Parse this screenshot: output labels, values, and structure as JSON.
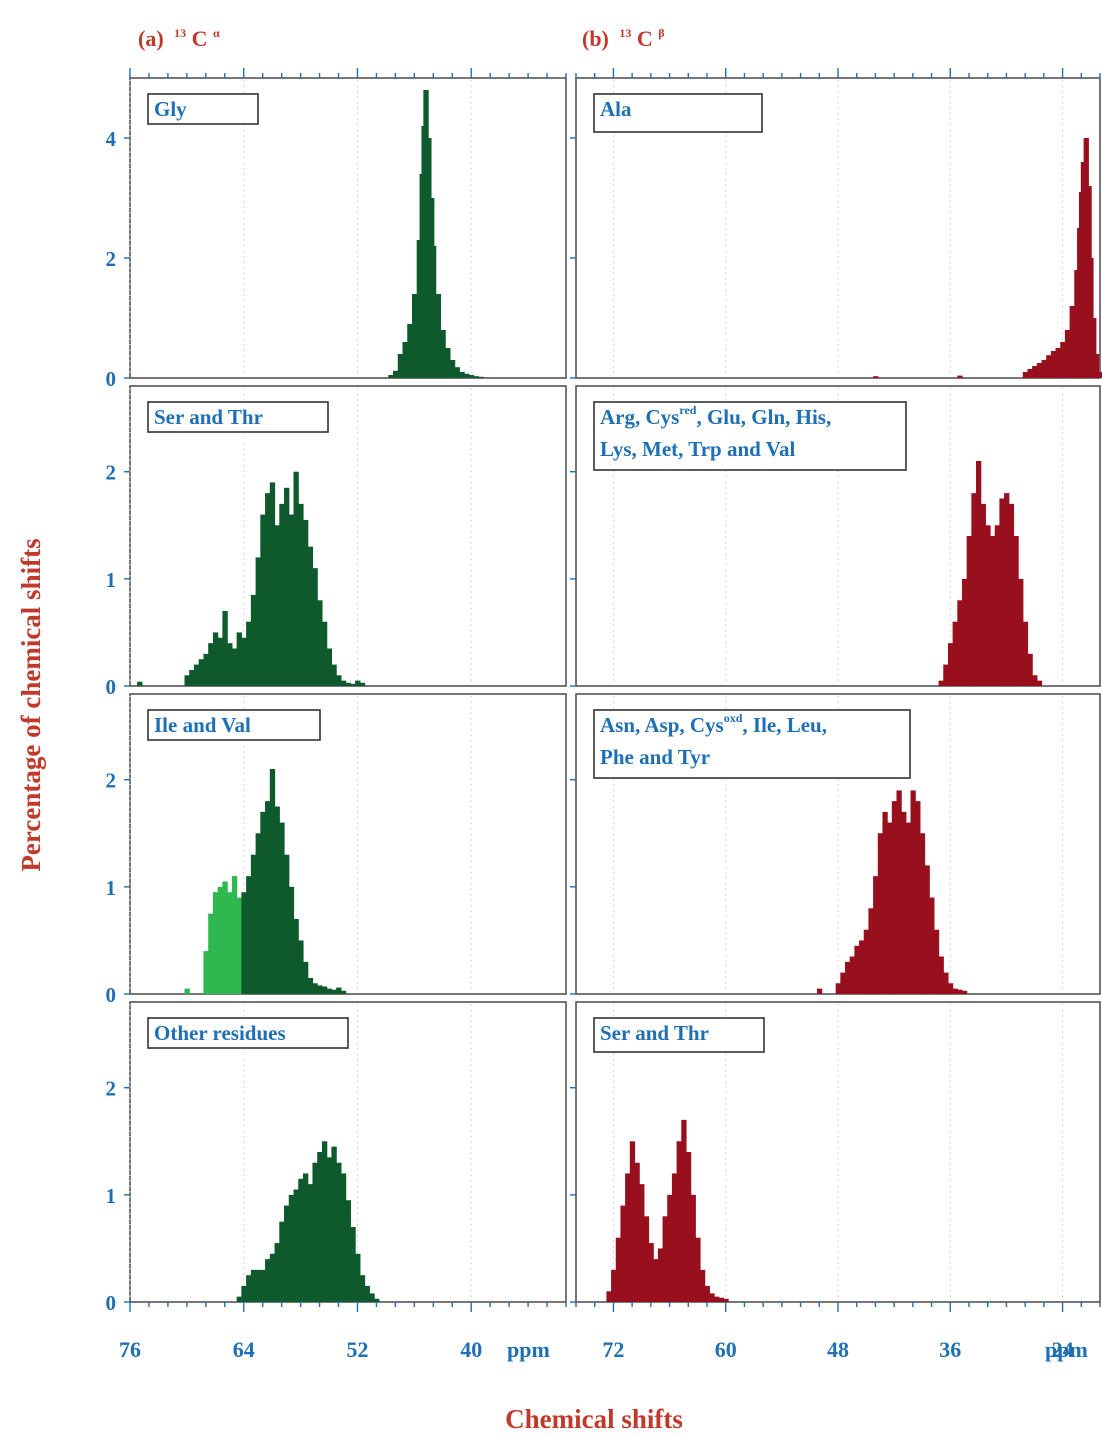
{
  "figure": {
    "title_a_prefix": "(a)",
    "title_a_mass": "13",
    "title_a_atom": "C",
    "title_a_sup": "α",
    "title_b_prefix": "(b)",
    "title_b_mass": "13",
    "title_b_atom": "C",
    "title_b_sup": "β",
    "xlabel": "Chemical shifts",
    "ylabel": "Percentage of  chemical shifts",
    "unit": "ppm"
  },
  "colors": {
    "ca_dark": "#0e5a2c",
    "ca_light": "#2eb84f",
    "cb": "#980f1e",
    "text_blue": "#1f6fb5",
    "title_red": "#c0392b"
  },
  "chart_data": [
    {
      "type": "bar",
      "column": "a",
      "row": 0,
      "label": [
        "Gly"
      ],
      "xlim": [
        76,
        30
      ],
      "xticks": [
        76,
        64,
        52,
        40
      ],
      "ylim": [
        0,
        5
      ],
      "yticks": [
        0,
        2,
        4
      ],
      "series": [
        {
          "color": "#0e5a2c",
          "x": [
            48.5,
            48.0,
            47.5,
            47.0,
            46.5,
            46.0,
            45.5,
            45.2,
            45.0,
            44.8,
            44.5,
            44.2,
            44.0,
            43.5,
            43.0,
            42.5,
            42.0,
            41.5,
            41.0,
            40.5,
            40.0,
            39.5,
            39.0
          ],
          "values": [
            0.05,
            0.12,
            0.4,
            0.6,
            0.9,
            1.4,
            2.3,
            3.4,
            4.2,
            4.8,
            4.0,
            3.0,
            2.2,
            1.4,
            0.8,
            0.5,
            0.3,
            0.18,
            0.1,
            0.07,
            0.05,
            0.03,
            0.02
          ]
        }
      ]
    },
    {
      "type": "bar",
      "column": "a",
      "row": 1,
      "label": [
        "Ser and Thr"
      ],
      "xlim": [
        76,
        30
      ],
      "xticks": [
        76,
        64,
        52,
        40
      ],
      "ylim": [
        0,
        2.8
      ],
      "yticks": [
        0,
        1,
        2
      ],
      "series": [
        {
          "color": "#0e5a2c",
          "x": [
            75,
            70,
            69.5,
            69,
            68.5,
            68,
            67.5,
            67,
            66.5,
            66,
            65.5,
            65,
            64.5,
            64,
            63.5,
            63,
            62.5,
            62,
            61.5,
            61,
            60.5,
            60,
            59.5,
            59,
            58.5,
            58,
            57.5,
            57,
            56.5,
            56,
            55.5,
            55,
            54.5,
            54,
            53.5,
            53,
            52.5,
            52,
            51.5
          ],
          "values": [
            0.04,
            0.1,
            0.15,
            0.2,
            0.25,
            0.3,
            0.4,
            0.5,
            0.45,
            0.7,
            0.4,
            0.35,
            0.5,
            0.45,
            0.6,
            0.85,
            1.2,
            1.6,
            1.8,
            1.9,
            1.5,
            1.7,
            1.85,
            1.6,
            2.0,
            1.7,
            1.55,
            1.3,
            1.1,
            0.8,
            0.6,
            0.35,
            0.2,
            0.1,
            0.05,
            0.03,
            0.02,
            0.05,
            0.03
          ]
        }
      ]
    },
    {
      "type": "bar",
      "column": "a",
      "row": 2,
      "label": [
        "Ile and Val"
      ],
      "xlim": [
        76,
        30
      ],
      "xticks": [
        76,
        64,
        52,
        40
      ],
      "ylim": [
        0,
        2.8
      ],
      "yticks": [
        0,
        1,
        2
      ],
      "series": [
        {
          "color": "#2eb84f",
          "x": [
            70,
            68,
            67.5,
            67,
            66.5,
            66,
            65.5,
            65,
            64.5,
            64
          ],
          "values": [
            0.05,
            0.4,
            0.75,
            0.95,
            1.0,
            1.05,
            0.95,
            1.1,
            0.9,
            0.85
          ]
        },
        {
          "color": "#0e5a2c",
          "x": [
            64,
            63.5,
            63,
            62.5,
            62,
            61.5,
            61,
            60.5,
            60,
            59.5,
            59,
            58.5,
            58,
            57.5,
            57,
            56.5,
            56,
            55.5,
            55,
            54.5,
            54,
            53.5
          ],
          "values": [
            0.95,
            1.1,
            1.3,
            1.5,
            1.7,
            1.8,
            2.1,
            1.75,
            1.6,
            1.3,
            1.0,
            0.7,
            0.5,
            0.3,
            0.15,
            0.1,
            0.08,
            0.07,
            0.05,
            0.04,
            0.06,
            0.03
          ]
        }
      ]
    },
    {
      "type": "bar",
      "column": "a",
      "row": 3,
      "label": [
        "Other residues"
      ],
      "xlim": [
        76,
        30
      ],
      "xticks": [
        76,
        64,
        52,
        40
      ],
      "ylim": [
        0,
        2.8
      ],
      "yticks": [
        0,
        1,
        2
      ],
      "series": [
        {
          "color": "#0e5a2c",
          "x": [
            64.5,
            64,
            63.5,
            63,
            62.5,
            62,
            61.5,
            61,
            60.5,
            60,
            59.5,
            59,
            58.5,
            58,
            57.5,
            57,
            56.5,
            56,
            55.5,
            55,
            54.5,
            54,
            53.5,
            53,
            52.5,
            52,
            51.5,
            51,
            50.5,
            50
          ],
          "values": [
            0.05,
            0.15,
            0.25,
            0.3,
            0.3,
            0.3,
            0.4,
            0.45,
            0.55,
            0.75,
            0.9,
            1.0,
            1.05,
            1.15,
            1.2,
            1.1,
            1.3,
            1.4,
            1.5,
            1.35,
            1.45,
            1.3,
            1.2,
            0.95,
            0.7,
            0.45,
            0.25,
            0.15,
            0.08,
            0.03
          ]
        }
      ]
    },
    {
      "type": "bar",
      "column": "b",
      "row": 0,
      "label": [
        "Ala"
      ],
      "xlim": [
        76,
        20
      ],
      "xticks": [
        72,
        60,
        48,
        36,
        24
      ],
      "ylim": [
        0,
        5
      ],
      "yticks": [
        0,
        2,
        4
      ],
      "series": [
        {
          "color": "#980f1e",
          "x": [
            44,
            35,
            28,
            27.5,
            27,
            26.5,
            26,
            25.5,
            25,
            24.5,
            24,
            23.5,
            23,
            22.5,
            22.2,
            22,
            21.8,
            21.5,
            21.2,
            21,
            20.7,
            20.4,
            20
          ],
          "values": [
            0.03,
            0.04,
            0.1,
            0.15,
            0.2,
            0.25,
            0.3,
            0.38,
            0.45,
            0.5,
            0.6,
            0.8,
            1.2,
            1.8,
            2.5,
            3.1,
            3.6,
            4.0,
            3.2,
            2.0,
            1.0,
            0.4,
            0.1
          ]
        }
      ]
    },
    {
      "type": "bar",
      "column": "b",
      "row": 1,
      "label": [
        "Arg, Cys",
        "red",
        ", Glu, Gln, His,",
        "Lys, Met, Trp and Val"
      ],
      "xlim": [
        76,
        20
      ],
      "xticks": [
        72,
        60,
        48,
        36,
        24
      ],
      "ylim": [
        0,
        2.8
      ],
      "yticks": [
        0,
        1,
        2
      ],
      "series": [
        {
          "color": "#980f1e",
          "x": [
            37,
            36.5,
            36,
            35.5,
            35,
            34.5,
            34,
            33.5,
            33,
            32.5,
            32,
            31.5,
            31,
            30.5,
            30,
            29.5,
            29,
            28.5,
            28,
            27.5,
            27,
            26.5
          ],
          "values": [
            0.05,
            0.2,
            0.4,
            0.6,
            0.8,
            1.0,
            1.4,
            1.8,
            2.1,
            1.7,
            1.5,
            1.4,
            1.5,
            1.75,
            1.8,
            1.7,
            1.4,
            1.0,
            0.6,
            0.3,
            0.1,
            0.05
          ]
        }
      ]
    },
    {
      "type": "bar",
      "column": "b",
      "row": 2,
      "label": [
        "Asn, Asp, Cys",
        "oxd",
        ", Ile, Leu,",
        "Phe and Tyr"
      ],
      "xlim": [
        76,
        20
      ],
      "xticks": [
        72,
        60,
        48,
        36,
        24
      ],
      "ylim": [
        0,
        2.8
      ],
      "yticks": [
        0,
        1,
        2
      ],
      "series": [
        {
          "color": "#980f1e",
          "x": [
            50,
            48,
            47.5,
            47,
            46.5,
            46,
            45.5,
            45,
            44.5,
            44,
            43.5,
            43,
            42.5,
            42,
            41.5,
            41,
            40.5,
            40,
            39.5,
            39,
            38.5,
            38,
            37.5,
            37,
            36.5,
            36,
            35.5,
            35,
            34.5
          ],
          "values": [
            0.05,
            0.1,
            0.2,
            0.3,
            0.35,
            0.45,
            0.5,
            0.6,
            0.8,
            1.1,
            1.5,
            1.7,
            1.6,
            1.8,
            1.9,
            1.7,
            1.6,
            1.9,
            1.8,
            1.5,
            1.2,
            0.9,
            0.6,
            0.35,
            0.2,
            0.1,
            0.05,
            0.04,
            0.03
          ]
        }
      ]
    },
    {
      "type": "bar",
      "column": "b",
      "row": 3,
      "label": [
        "Ser and Thr"
      ],
      "xlim": [
        76,
        20
      ],
      "xticks": [
        72,
        60,
        48,
        36,
        24
      ],
      "ylim": [
        0,
        2.8
      ],
      "yticks": [
        0,
        1,
        2
      ],
      "series": [
        {
          "color": "#980f1e",
          "x": [
            72.5,
            72,
            71.5,
            71,
            70.5,
            70,
            69.5,
            69,
            68.5,
            68,
            67.5,
            67,
            66.5,
            66,
            65.5,
            65,
            64.5,
            64,
            63.5,
            63,
            62.5,
            62,
            61.5,
            61,
            60.5,
            60
          ],
          "values": [
            0.1,
            0.3,
            0.6,
            0.9,
            1.2,
            1.5,
            1.3,
            1.1,
            0.8,
            0.55,
            0.4,
            0.5,
            0.8,
            1.0,
            1.2,
            1.5,
            1.7,
            1.4,
            1.0,
            0.6,
            0.3,
            0.15,
            0.08,
            0.05,
            0.04,
            0.03
          ]
        }
      ]
    }
  ]
}
